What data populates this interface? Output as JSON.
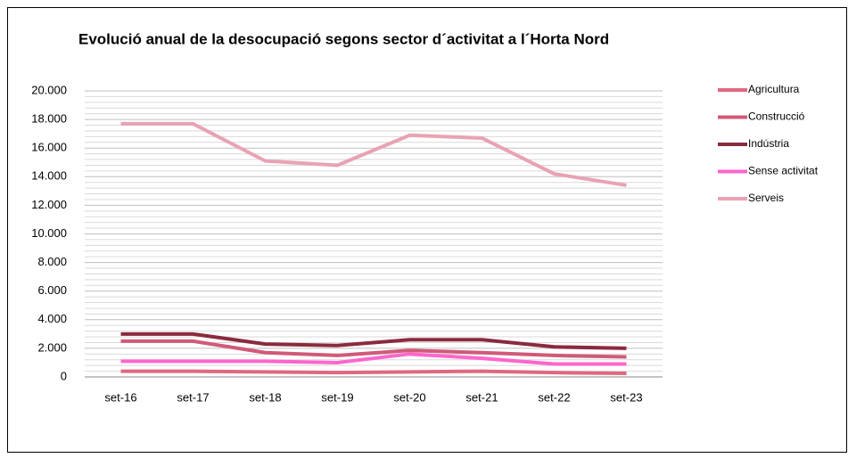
{
  "chart_data": {
    "type": "line",
    "title": "Evolució anual de la desocupació segons sector d´activitat a l´Horta Nord",
    "categories": [
      "set-16",
      "set-17",
      "set-18",
      "set-19",
      "set-20",
      "set-21",
      "set-22",
      "set-23"
    ],
    "series": [
      {
        "name": "Agricultura",
        "color": "#e0687f",
        "values": [
          400,
          400,
          350,
          300,
          350,
          400,
          300,
          250
        ]
      },
      {
        "name": "Construcció",
        "color": "#d05a78",
        "values": [
          2500,
          2500,
          1700,
          1500,
          1850,
          1700,
          1500,
          1400
        ]
      },
      {
        "name": "Indústria",
        "color": "#8b2a3e",
        "values": [
          3000,
          3000,
          2300,
          2200,
          2600,
          2600,
          2100,
          2000
        ]
      },
      {
        "name": "Sense activitat",
        "color": "#ff66cc",
        "values": [
          1100,
          1100,
          1100,
          1000,
          1600,
          1300,
          900,
          900
        ]
      },
      {
        "name": "Serveis",
        "color": "#e8a3b3",
        "values": [
          17700,
          17700,
          15100,
          14800,
          16900,
          16700,
          14200,
          13400
        ]
      }
    ],
    "ylim": [
      0,
      20000
    ],
    "yticks": [
      {
        "value": 0,
        "label": "0"
      },
      {
        "value": 2000,
        "label": "2.000"
      },
      {
        "value": 4000,
        "label": "4.000"
      },
      {
        "value": 6000,
        "label": "6.000"
      },
      {
        "value": 8000,
        "label": "8.000"
      },
      {
        "value": 10000,
        "label": "10.000"
      },
      {
        "value": 12000,
        "label": "12.000"
      },
      {
        "value": 14000,
        "label": "14.000"
      },
      {
        "value": 16000,
        "label": "16.000"
      },
      {
        "value": 18000,
        "label": "18.000"
      },
      {
        "value": 20000,
        "label": "20.000"
      }
    ],
    "minor_yticks": [
      400,
      800,
      1200,
      1600,
      2400,
      2800,
      3200,
      3600,
      4400,
      4800,
      5200,
      5600,
      6400,
      6800,
      7200,
      7600,
      8400,
      8800,
      9200,
      9600,
      10400,
      10800,
      11200,
      11600,
      12400,
      12800,
      13200,
      13600,
      14400,
      14800,
      15200,
      15600,
      16400,
      16800,
      17200,
      17600,
      18400,
      18800,
      19200,
      19600
    ],
    "grid": true,
    "legend": "right"
  }
}
